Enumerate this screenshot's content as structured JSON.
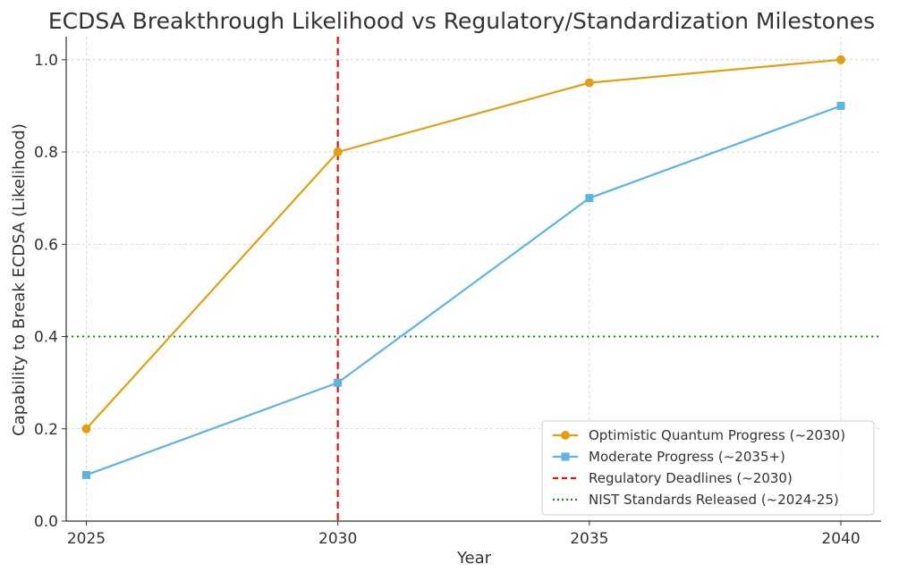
{
  "chart_data": {
    "type": "line",
    "title": "ECDSA Breakthrough Likelihood vs Regulatory/Standardization Milestones",
    "xlabel": "Year",
    "ylabel": "Capability to Break ECDSA (Likelihood)",
    "x": [
      2025,
      2030,
      2035,
      2040
    ],
    "xlim": [
      2024.6,
      2040.8
    ],
    "ylim": [
      0.0,
      1.05
    ],
    "xticks": [
      "2025",
      "2030",
      "2035",
      "2040"
    ],
    "yticks": [
      "0.0",
      "0.2",
      "0.4",
      "0.6",
      "0.8",
      "1.0"
    ],
    "grid": true,
    "legend_position": "lower-right",
    "series": [
      {
        "name": "Optimistic Quantum Progress (~2030)",
        "values": [
          0.2,
          0.8,
          0.95,
          1.0
        ],
        "color": "#E0A011",
        "marker": "circle"
      },
      {
        "name": "Moderate Progress (~2035+)",
        "values": [
          0.1,
          0.3,
          0.7,
          0.9
        ],
        "color": "#5DB4E4",
        "marker": "square"
      }
    ],
    "reference_lines": [
      {
        "name": "Regulatory Deadlines (~2030)",
        "orientation": "vertical",
        "value": 2030,
        "color": "#E3120B",
        "style": "dashed"
      },
      {
        "name": "NIST Standards Released (~2024-25)",
        "orientation": "horizontal",
        "value": 0.4,
        "color": "#1A8A1A",
        "style": "dotted"
      }
    ]
  }
}
